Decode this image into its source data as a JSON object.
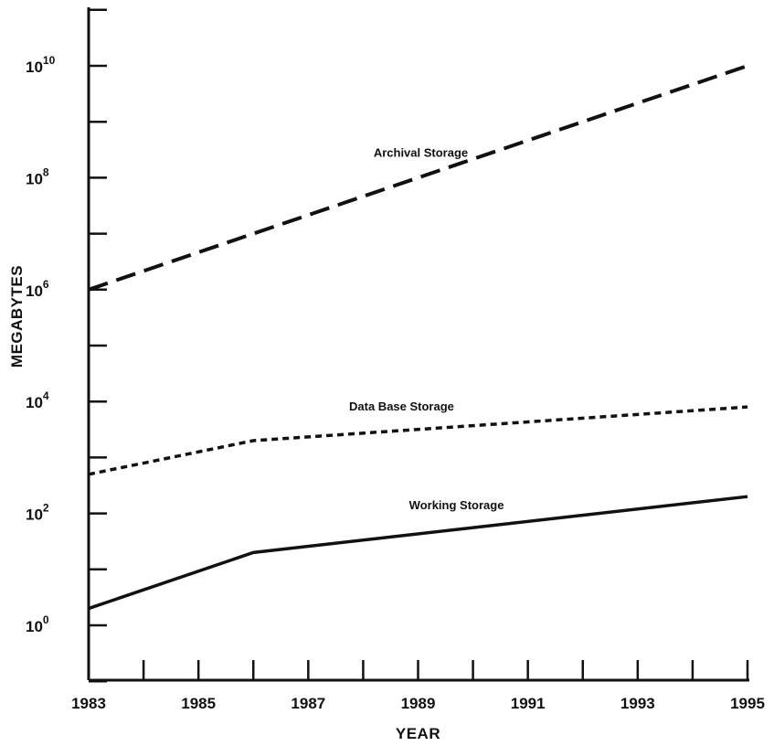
{
  "chart_data": {
    "type": "line",
    "xlabel": "YEAR",
    "ylabel": "MEGABYTES",
    "xlim": [
      1983,
      1995
    ],
    "ylim_log10": [
      -1,
      11
    ],
    "y_scale": "log",
    "x_tick_labels": [
      "1983",
      "1985",
      "1987",
      "1989",
      "1991",
      "1993",
      "1995"
    ],
    "x_tick_values": [
      1983,
      1985,
      1987,
      1989,
      1991,
      1993,
      1995
    ],
    "x_minor_ticks": [
      1984,
      1986,
      1988,
      1990,
      1992,
      1994
    ],
    "y_tick_labels": [
      {
        "base": "10",
        "exp": "0",
        "value": 1
      },
      {
        "base": "10",
        "exp": "2",
        "value": 100
      },
      {
        "base": "10",
        "exp": "4",
        "value": 10000
      },
      {
        "base": "10",
        "exp": "6",
        "value": 1000000
      },
      {
        "base": "10",
        "exp": "8",
        "value": 100000000
      },
      {
        "base": "10",
        "exp": "10",
        "value": 10000000000
      }
    ],
    "y_minor_ticks_log10": [
      -1,
      1,
      3,
      5,
      7,
      9,
      11
    ],
    "grid": false,
    "legend": "none",
    "series": [
      {
        "name": "Archival Storage",
        "style": "long-dash",
        "x": [
          1983,
          1986,
          1995
        ],
        "y": [
          1000000,
          10000000,
          10000000000
        ]
      },
      {
        "name": "Data Base Storage",
        "style": "short-dash",
        "x": [
          1983,
          1986,
          1995
        ],
        "y": [
          500,
          2000,
          8000
        ]
      },
      {
        "name": "Working Storage",
        "style": "solid",
        "x": [
          1983,
          1986,
          1995
        ],
        "y": [
          2,
          20,
          200
        ]
      }
    ]
  }
}
